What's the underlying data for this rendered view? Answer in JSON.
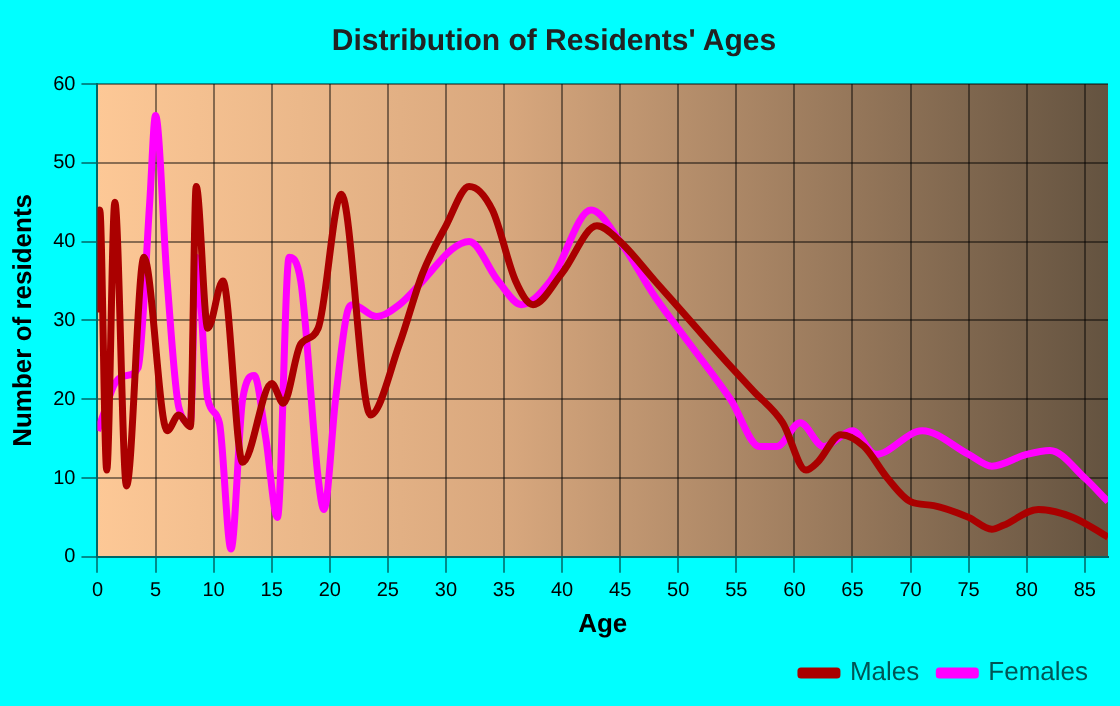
{
  "chart_data": {
    "type": "line",
    "title": "Distribution of Residents' Ages",
    "xlabel": "Age",
    "ylabel": "Number of residents",
    "xlim": [
      0,
      87
    ],
    "xticks": [
      0,
      5,
      10,
      15,
      20,
      25,
      30,
      35,
      40,
      45,
      50,
      55,
      60,
      65,
      70,
      75,
      80,
      85
    ],
    "ylim": [
      0,
      60
    ],
    "yticks": [
      0,
      10,
      20,
      30,
      40,
      50,
      60
    ],
    "grid": true,
    "legend": "bottom right",
    "marker": "none",
    "line_style": "solid",
    "series": [
      {
        "name": "Males",
        "color": "#aa0000",
        "x": [
          0,
          0.2,
          0.8,
          1.5,
          2.5,
          4,
          6,
          7,
          8,
          8.5,
          9.5,
          10.8,
          12.5,
          15,
          16,
          17.5,
          19,
          21,
          23.5,
          26,
          28,
          30,
          32,
          34,
          36,
          37.5,
          40,
          43,
          45,
          48,
          51,
          54,
          56.5,
          59,
          61,
          62,
          64,
          66,
          68,
          70,
          72,
          75,
          77,
          78,
          81,
          84,
          87
        ],
        "values": [
          31,
          44,
          11,
          45,
          9,
          38,
          16,
          18,
          16.5,
          47,
          29,
          35,
          12,
          22,
          19.5,
          27,
          29,
          46,
          18,
          27,
          36,
          42,
          47,
          44,
          35,
          32,
          36,
          42,
          40,
          35,
          30,
          25,
          21,
          17,
          11,
          12,
          15.5,
          14,
          10,
          7,
          6.5,
          5,
          3.5,
          4,
          6,
          5,
          2.5
        ]
      },
      {
        "name": "Females",
        "color": "#ff00ff",
        "x": [
          0,
          0.5,
          1.5,
          2.5,
          3.5,
          4.5,
          5,
          6,
          7,
          8,
          8.5,
          9.5,
          10.5,
          11.5,
          12.5,
          13.5,
          14.5,
          15.5,
          16.5,
          17.5,
          19,
          19.5,
          20.5,
          21.5,
          22,
          24,
          26,
          28,
          30.5,
          32,
          34.5,
          36.5,
          39,
          42.5,
          45,
          48,
          51,
          54.5,
          57,
          58.5,
          60.5,
          62.5,
          65,
          67,
          71,
          75,
          77,
          80,
          82,
          85,
          87
        ],
        "values": [
          16,
          18,
          22,
          23,
          24,
          45,
          56,
          35,
          19,
          17,
          38,
          20,
          17,
          1,
          20,
          23,
          15,
          5,
          38,
          35,
          10,
          6,
          20,
          31,
          32,
          30.5,
          32,
          35,
          39,
          40,
          35,
          32,
          35,
          44,
          40,
          33,
          27,
          20,
          14,
          14,
          17,
          14,
          16,
          13,
          16,
          13,
          11.5,
          13,
          13.5,
          10,
          7
        ]
      }
    ]
  }
}
